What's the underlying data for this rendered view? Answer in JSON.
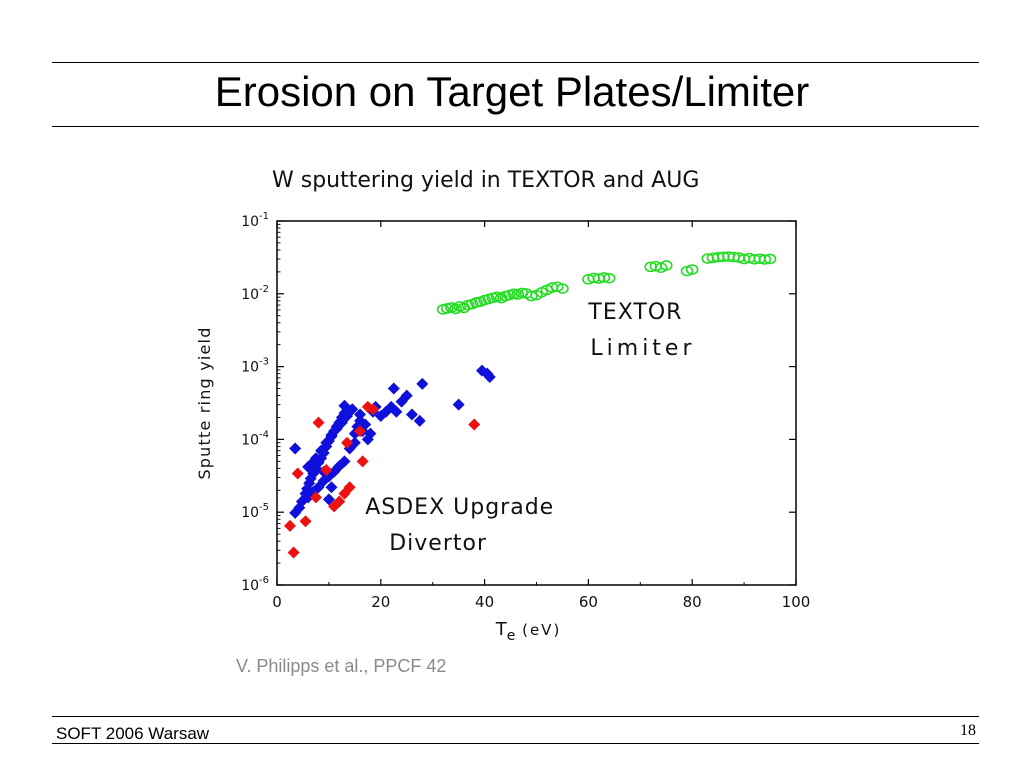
{
  "slide": {
    "title": "Erosion on Target Plates/Limiter",
    "citation": "V. Philipps et al., PPCF 42",
    "footer_left": "SOFT 2006 Warsaw",
    "page_number": "18"
  },
  "chart_data": {
    "type": "scatter",
    "title": "W sputtering yield in TEXTOR and AUG",
    "xlabel": "T",
    "xlabel_sub": "e",
    "xlabel_unit": "(eV)",
    "ylabel": "Sputte ring yield",
    "xlim": [
      0,
      100
    ],
    "ylim": [
      1e-06,
      0.1
    ],
    "yscale": "log",
    "x_ticks": [
      "0",
      "20",
      "40",
      "60",
      "80",
      "100"
    ],
    "y_ticks": [
      {
        "base": "10",
        "exp": "-6"
      },
      {
        "base": "10",
        "exp": "-5"
      },
      {
        "base": "10",
        "exp": "-4"
      },
      {
        "base": "10",
        "exp": "-3"
      },
      {
        "base": "10",
        "exp": "-2"
      },
      {
        "base": "10",
        "exp": "-1"
      }
    ],
    "grid": false,
    "annotations": [
      {
        "lines": [
          "TEXTOR",
          "Limiter"
        ],
        "x": 60,
        "y": 0.0045
      },
      {
        "lines": [
          "ASDEX Upgrade",
          "Divertor"
        ],
        "x": 17,
        "y": 9.5e-06
      }
    ],
    "series": [
      {
        "color": "#1010dd",
        "marker": "diamond",
        "points": [
          [
            3.5,
            9.8e-06
          ],
          [
            4.3,
            1.15e-05
          ],
          [
            4.8,
            1.4e-05
          ],
          [
            5.5,
            1.8e-05
          ],
          [
            5.8,
            2.1e-05
          ],
          [
            6.2,
            2.5e-05
          ],
          [
            6.5,
            2.9e-05
          ],
          [
            7,
            3.4e-05
          ],
          [
            7.5,
            4e-05
          ],
          [
            8,
            4.8e-05
          ],
          [
            8.5,
            5.5e-05
          ],
          [
            9,
            6.5e-05
          ],
          [
            9.5,
            8e-05
          ],
          [
            10,
            9.5e-05
          ],
          [
            10.5,
            0.00011
          ],
          [
            11,
            0.00013
          ],
          [
            11.5,
            0.00015
          ],
          [
            12,
            0.00017
          ],
          [
            12.5,
            0.0002
          ],
          [
            13,
            0.00023
          ],
          [
            6,
            1.6e-05
          ],
          [
            7,
            1.9e-05
          ],
          [
            8,
            2.2e-05
          ],
          [
            9,
            2.7e-05
          ],
          [
            10,
            3.1e-05
          ],
          [
            11,
            3.6e-05
          ],
          [
            12,
            4.3e-05
          ],
          [
            13,
            5e-05
          ],
          [
            6.5,
            4.5e-05
          ],
          [
            7.5,
            5.5e-05
          ],
          [
            8.5,
            7e-05
          ],
          [
            9.5,
            9e-05
          ],
          [
            10.5,
            0.000115
          ],
          [
            11.5,
            0.00014
          ],
          [
            12.5,
            0.00017
          ],
          [
            13.5,
            0.00021
          ],
          [
            14.5,
            0.00026
          ],
          [
            15,
            0.00012
          ],
          [
            15.5,
            0.00015
          ],
          [
            16,
            0.00018
          ],
          [
            16.5,
            0.00013
          ],
          [
            17,
            0.00016
          ],
          [
            17.5,
            0.0001
          ],
          [
            18,
            0.00012
          ],
          [
            18.5,
            0.00024
          ],
          [
            19,
            0.00028
          ],
          [
            20,
            0.00021
          ],
          [
            21,
            0.00024
          ],
          [
            22,
            0.00028
          ],
          [
            22.5,
            0.0005
          ],
          [
            23,
            0.00024
          ],
          [
            24,
            0.00033
          ],
          [
            25,
            0.0004
          ],
          [
            26,
            0.00022
          ],
          [
            27.5,
            0.00018
          ],
          [
            28,
            0.00058
          ],
          [
            13,
            0.00029
          ],
          [
            14,
            7.5e-05
          ],
          [
            15,
            9e-05
          ],
          [
            16,
            0.00022
          ],
          [
            3.5,
            7.5e-05
          ],
          [
            6,
            4.2e-05
          ],
          [
            9,
            3.6e-05
          ],
          [
            10,
            1.5e-05
          ],
          [
            10.5,
            2.2e-05
          ],
          [
            35,
            0.0003
          ],
          [
            39.5,
            0.00088
          ],
          [
            40.5,
            0.0008
          ],
          [
            41,
            0.00072
          ]
        ]
      },
      {
        "color": "#ee1111",
        "marker": "diamond",
        "points": [
          [
            2.5,
            6.5e-06
          ],
          [
            3.2,
            2.8e-06
          ],
          [
            4,
            3.4e-05
          ],
          [
            5.5,
            7.5e-06
          ],
          [
            7.5,
            1.6e-05
          ],
          [
            8,
            0.00017
          ],
          [
            9.5,
            3.8e-05
          ],
          [
            11,
            1.2e-05
          ],
          [
            12,
            1.4e-05
          ],
          [
            13,
            1.8e-05
          ],
          [
            13.5,
            9e-05
          ],
          [
            14,
            2.2e-05
          ],
          [
            16,
            0.00013
          ],
          [
            16.5,
            5e-05
          ],
          [
            17.5,
            0.00028
          ],
          [
            18.5,
            0.00026
          ],
          [
            38,
            0.00016
          ]
        ]
      },
      {
        "color": "#22dd22",
        "marker": "circle-open",
        "points": [
          [
            32,
            0.0061
          ],
          [
            32.8,
            0.0063
          ],
          [
            33.6,
            0.0065
          ],
          [
            34.4,
            0.0062
          ],
          [
            35.2,
            0.0067
          ],
          [
            36,
            0.0064
          ],
          [
            36.8,
            0.007
          ],
          [
            37.6,
            0.0072
          ],
          [
            38.4,
            0.0076
          ],
          [
            39.2,
            0.0078
          ],
          [
            40,
            0.0082
          ],
          [
            40.8,
            0.0085
          ],
          [
            41.6,
            0.0088
          ],
          [
            42.4,
            0.0091
          ],
          [
            43.2,
            0.0087
          ],
          [
            44,
            0.0093
          ],
          [
            44.8,
            0.0096
          ],
          [
            45.6,
            0.01
          ],
          [
            46.4,
            0.0098
          ],
          [
            47.2,
            0.0103
          ],
          [
            48,
            0.0101
          ],
          [
            49,
            0.0093
          ],
          [
            50,
            0.0096
          ],
          [
            51,
            0.0105
          ],
          [
            52,
            0.0113
          ],
          [
            53,
            0.0122
          ],
          [
            54,
            0.0125
          ],
          [
            55,
            0.0118
          ],
          [
            60,
            0.0158
          ],
          [
            61,
            0.0165
          ],
          [
            62,
            0.0162
          ],
          [
            63,
            0.0168
          ],
          [
            64,
            0.0164
          ],
          [
            72,
            0.0235
          ],
          [
            73,
            0.024
          ],
          [
            74,
            0.0228
          ],
          [
            75,
            0.0245
          ],
          [
            79,
            0.0205
          ],
          [
            80,
            0.0215
          ],
          [
            83,
            0.0305
          ],
          [
            84,
            0.0312
          ],
          [
            85,
            0.0318
          ],
          [
            86,
            0.0322
          ],
          [
            87,
            0.0325
          ],
          [
            88,
            0.032
          ],
          [
            89,
            0.0315
          ],
          [
            90,
            0.03
          ],
          [
            91,
            0.031
          ],
          [
            92,
            0.0298
          ],
          [
            93,
            0.0303
          ],
          [
            94,
            0.0296
          ],
          [
            95,
            0.0301
          ]
        ]
      }
    ]
  }
}
